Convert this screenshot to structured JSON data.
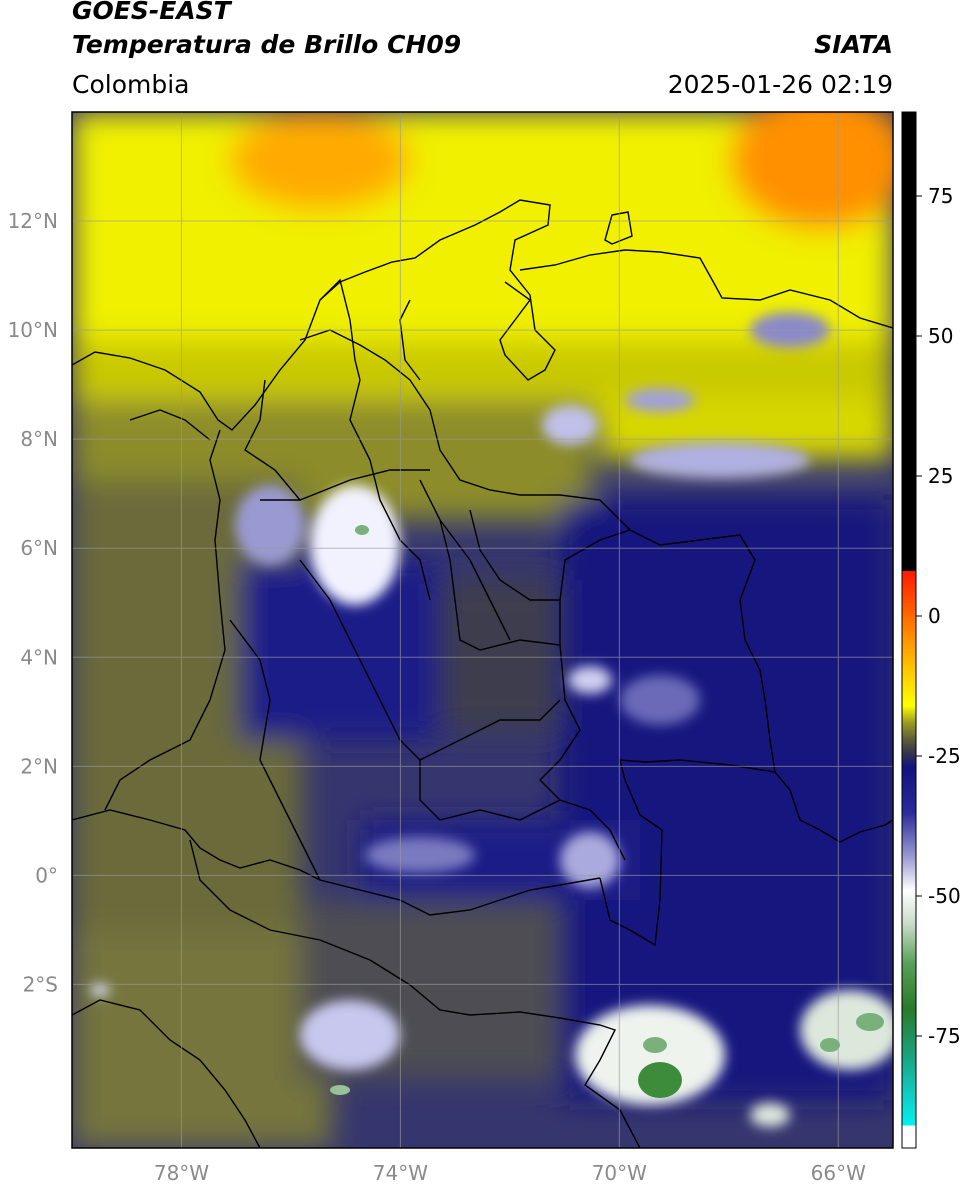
{
  "header": {
    "satellite": "GOES-EAST",
    "product": "Temperatura de Brillo CH09",
    "region": "Colombia",
    "source": "SIATA",
    "timestamp": "2025-01-26 02:19"
  },
  "map": {
    "projection": "PlateCarree",
    "lon_range": [
      -80,
      -65
    ],
    "lat_range": [
      -5,
      14
    ],
    "gridlines": true,
    "lat_ticks": [
      {
        "value": 12,
        "label": "12°N"
      },
      {
        "value": 10,
        "label": "10°N"
      },
      {
        "value": 8,
        "label": "8°N"
      },
      {
        "value": 6,
        "label": "6°N"
      },
      {
        "value": 4,
        "label": "4°N"
      },
      {
        "value": 2,
        "label": "2°N"
      },
      {
        "value": 0,
        "label": "0°"
      },
      {
        "value": -2,
        "label": "2°S"
      }
    ],
    "lon_ticks": [
      {
        "value": -78,
        "label": "78°W"
      },
      {
        "value": -74,
        "label": "74°W"
      },
      {
        "value": -70,
        "label": "70°W"
      },
      {
        "value": -66,
        "label": "66°W"
      }
    ]
  },
  "colorbar": {
    "range": [
      -95,
      90
    ],
    "ticks": [
      {
        "value": 75,
        "label": "75"
      },
      {
        "value": 50,
        "label": "50"
      },
      {
        "value": 25,
        "label": "25"
      },
      {
        "value": 0,
        "label": "0"
      },
      {
        "value": -25,
        "label": "-25"
      },
      {
        "value": -50,
        "label": "-50"
      },
      {
        "value": -75,
        "label": "-75"
      }
    ],
    "stops": [
      {
        "value": 90,
        "color": "#000000"
      },
      {
        "value": 8,
        "color": "#000000"
      },
      {
        "value": 8,
        "color": "#ff1a00"
      },
      {
        "value": -3,
        "color": "#ff8800"
      },
      {
        "value": -12,
        "color": "#ffdd00"
      },
      {
        "value": -16,
        "color": "#ffff00"
      },
      {
        "value": -19,
        "color": "#9c9c20"
      },
      {
        "value": -22,
        "color": "#5e5e3a"
      },
      {
        "value": -24,
        "color": "#3c3c44"
      },
      {
        "value": -27,
        "color": "#121280"
      },
      {
        "value": -35,
        "color": "#2a2a9a"
      },
      {
        "value": -43,
        "color": "#9a9ad2"
      },
      {
        "value": -49,
        "color": "#ffffff"
      },
      {
        "value": -55,
        "color": "#c8dcc8"
      },
      {
        "value": -62,
        "color": "#5aa05a"
      },
      {
        "value": -70,
        "color": "#2a7a2a"
      },
      {
        "value": -78,
        "color": "#1aa07a"
      },
      {
        "value": -86,
        "color": "#10d0c8"
      },
      {
        "value": -91,
        "color": "#00f0f0"
      },
      {
        "value": -91,
        "color": "#ffffff"
      },
      {
        "value": -95,
        "color": "#ffffff"
      }
    ]
  }
}
